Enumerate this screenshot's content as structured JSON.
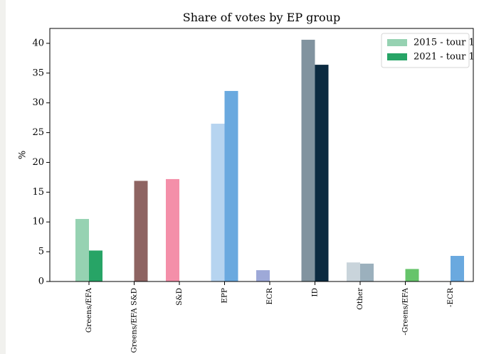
{
  "chart_data": {
    "type": "bar",
    "title": "Share of votes by EP group",
    "xlabel": "",
    "ylabel": "%",
    "ylim": [
      0,
      42.5
    ],
    "yticks": [
      0,
      5,
      10,
      15,
      20,
      25,
      30,
      35,
      40
    ],
    "grid": false,
    "legend_position": "top-right",
    "categories": [
      "Greens/EFA",
      "Greens/EFA S&D",
      "S&D",
      "EPP",
      "ECR",
      "ID",
      "Other",
      "-Greens/EFA",
      "-ECR"
    ],
    "series": [
      {
        "name": "2015 - tour 1",
        "legend_color": "#96d2b2",
        "values": [
          10.5,
          null,
          17.2,
          26.5,
          1.9,
          40.6,
          3.2,
          null,
          null
        ],
        "colors": [
          "#96d2b2",
          null,
          "#f48fa9",
          "#b6d4f0",
          "#9ea9d8",
          "#81939f",
          "#c9d4db",
          null,
          null
        ]
      },
      {
        "name": "2021 - tour 1",
        "legend_color": "#27a466",
        "values": [
          5.2,
          16.9,
          null,
          32.0,
          null,
          36.4,
          3.0,
          2.1,
          4.3
        ],
        "colors": [
          "#27a466",
          "#8e6462",
          null,
          "#6aa9df",
          null,
          "#0b2a40",
          "#9bb0bd",
          "#66c46a",
          "#6aa9df"
        ]
      }
    ]
  }
}
